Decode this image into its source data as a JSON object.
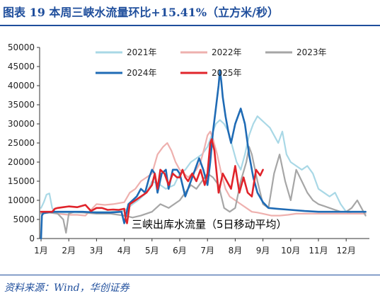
{
  "header": {
    "title": "图表  19    本周三峡水流量环比+15.41%（立方米/秒）"
  },
  "footer": {
    "source": "资料来源：Wind，华创证券"
  },
  "chart_data": {
    "type": "line",
    "title": "图表  19    本周三峡水流量环比+15.41%（立方米/秒）",
    "annotation": "三峡出库水流量（5日移动平均）",
    "ylim": [
      0,
      50000
    ],
    "y_ticks": [
      "0",
      "5000",
      "10000",
      "15000",
      "20000",
      "25000",
      "30000",
      "35000",
      "40000",
      "45000",
      "50000"
    ],
    "x_ticks": [
      "1月",
      "2月",
      "3月",
      "4月",
      "5月",
      "6月",
      "7月",
      "8月",
      "9月",
      "10月",
      "11月",
      "12月"
    ],
    "grid": false,
    "legend_position": "top",
    "series": [
      {
        "name": "2021年",
        "color": "#a9d8e6",
        "x": [
          1,
          1.1,
          1.2,
          1.3,
          1.4,
          1.5,
          1.6,
          2,
          2.5,
          3,
          3.5,
          4,
          4.3,
          4.5,
          4.8,
          5,
          5.3,
          5.5,
          5.8,
          6,
          6.2,
          6.4,
          6.6,
          6.8,
          7,
          7.15,
          7.3,
          7.45,
          7.6,
          7.75,
          7.9,
          8.05,
          8.2,
          8.35,
          8.5,
          8.65,
          8.8,
          8.95,
          9.1,
          9.25,
          9.4,
          9.55,
          9.7,
          9.85,
          10,
          10.2,
          10.4,
          10.6,
          10.8,
          11,
          11.2,
          11.4,
          11.6,
          11.8,
          12,
          12.2,
          12.4,
          12.7
        ],
        "values": [
          8000,
          9500,
          11500,
          11800,
          8000,
          7000,
          6800,
          6800,
          6800,
          7000,
          7000,
          7200,
          9000,
          10000,
          12000,
          15000,
          14000,
          13000,
          14000,
          17000,
          18000,
          20000,
          21000,
          22000,
          24000,
          27000,
          30000,
          31000,
          30000,
          28000,
          24000,
          20000,
          18000,
          22000,
          27000,
          30000,
          32000,
          31000,
          30000,
          29000,
          27000,
          25000,
          28000,
          22000,
          20000,
          19000,
          18000,
          19000,
          17000,
          13000,
          12000,
          11000,
          12000,
          9000,
          7000,
          6500,
          6500,
          6500
        ]
      },
      {
        "name": "2022年",
        "color": "#eeb0ae",
        "x": [
          1,
          1.3,
          1.6,
          2,
          2.3,
          2.6,
          3,
          3.3,
          3.6,
          4,
          4.2,
          4.4,
          4.6,
          4.8,
          5,
          5.2,
          5.4,
          5.55,
          5.7,
          5.85,
          6,
          6.15,
          6.3,
          6.45,
          6.6,
          6.75,
          6.9,
          7,
          7.1,
          7.2,
          7.35,
          7.5,
          7.65,
          7.8,
          8,
          8.2,
          8.4,
          8.6,
          8.8,
          9,
          9.3,
          9.6,
          9.9,
          10.2,
          10.5,
          10.8,
          11.1,
          11.4,
          11.7,
          12,
          12.3,
          12.7
        ],
        "values": [
          6500,
          6800,
          6500,
          6200,
          6200,
          6000,
          9000,
          8800,
          9000,
          9500,
          12000,
          13000,
          15000,
          16000,
          17000,
          22000,
          24000,
          25000,
          23000,
          20000,
          18000,
          17000,
          16000,
          17000,
          18000,
          20000,
          24000,
          27000,
          28000,
          26000,
          22000,
          17000,
          13000,
          11000,
          10000,
          9000,
          8000,
          7000,
          6800,
          6500,
          6000,
          6000,
          6200,
          6500,
          6500,
          6500,
          6500,
          6500,
          6500,
          6500,
          6500,
          6500
        ]
      },
      {
        "name": "2023年",
        "color": "#a6a6a6",
        "x": [
          1,
          1.3,
          1.6,
          1.8,
          1.9,
          2,
          2.2,
          2.5,
          3,
          3.5,
          4,
          4.3,
          4.6,
          5,
          5.3,
          5.6,
          6,
          6.2,
          6.4,
          6.6,
          6.8,
          7,
          7.2,
          7.4,
          7.6,
          7.8,
          8,
          8.2,
          8.4,
          8.5,
          8.6,
          8.8,
          9,
          9.2,
          9.4,
          9.6,
          9.8,
          10,
          10.2,
          10.4,
          10.6,
          10.8,
          11,
          11.2,
          11.4,
          11.6,
          11.8,
          12,
          12.2,
          12.4,
          12.7
        ],
        "values": [
          6500,
          6800,
          6500,
          5000,
          1500,
          6500,
          7000,
          6800,
          6500,
          6500,
          6000,
          5500,
          6000,
          7000,
          9000,
          8000,
          10000,
          12000,
          14000,
          13000,
          15000,
          17000,
          16000,
          14000,
          8000,
          7000,
          8000,
          15000,
          20000,
          24000,
          22000,
          15000,
          9000,
          8000,
          17000,
          22000,
          15000,
          10000,
          18000,
          15000,
          12000,
          10000,
          9000,
          8500,
          8000,
          7500,
          7000,
          7000,
          8000,
          10000,
          6000
        ]
      },
      {
        "name": "2024年",
        "color": "#1f6bb5",
        "x": [
          1,
          1.03,
          1.08,
          1.2,
          1.5,
          2,
          2.5,
          3,
          3.5,
          3.9,
          4,
          4.15,
          4.3,
          4.45,
          4.6,
          4.75,
          4.9,
          5,
          5.1,
          5.2,
          5.35,
          5.5,
          5.6,
          5.75,
          5.9,
          6,
          6.2,
          6.4,
          6.55,
          6.7,
          6.85,
          7,
          7.1,
          7.2,
          7.3,
          7.4,
          7.45,
          7.5,
          7.55,
          7.65,
          7.75,
          7.85,
          8,
          8.2,
          8.35,
          8.5,
          8.65,
          8.8,
          9,
          9.2,
          9.5,
          10,
          10.5,
          11,
          11.5,
          12,
          12.7
        ],
        "values": [
          0,
          6000,
          6600,
          6800,
          7000,
          7000,
          7000,
          6800,
          6800,
          7000,
          4000,
          9000,
          10000,
          11000,
          13000,
          12000,
          16000,
          18000,
          17000,
          12000,
          17000,
          18000,
          13000,
          18000,
          18000,
          17000,
          11000,
          15000,
          18000,
          21000,
          18000,
          14000,
          20000,
          28000,
          34000,
          40000,
          44000,
          41000,
          37000,
          32000,
          28000,
          25000,
          30000,
          34000,
          30000,
          22000,
          16000,
          12000,
          9500,
          8000,
          7800,
          7500,
          7200,
          7000,
          7000,
          7000,
          7000
        ]
      },
      {
        "name": "2025年",
        "color": "#e0242b",
        "x": [
          1,
          1.2,
          1.4,
          1.5,
          1.6,
          1.8,
          2,
          2.3,
          2.6,
          2.8,
          3,
          3.2,
          3.4,
          3.6,
          3.8,
          4,
          4.05,
          4.1,
          4.2,
          4.4,
          4.6,
          4.8,
          5,
          5.1,
          5.2,
          5.3,
          5.45,
          5.6,
          5.75,
          5.9,
          6,
          6.1,
          6.2,
          6.3,
          6.45,
          6.6,
          6.75,
          6.9,
          7,
          7.1,
          7.15,
          7.25,
          7.4,
          7.55,
          7.7,
          7.85,
          8,
          8.15,
          8.3,
          8.45,
          8.6,
          8.75,
          8.9,
          9
        ],
        "values": [
          7000,
          7000,
          7000,
          7800,
          8000,
          8200,
          8400,
          8200,
          8800,
          7200,
          8000,
          8000,
          7500,
          7600,
          7500,
          7800,
          5000,
          4000,
          9000,
          10000,
          11000,
          12000,
          14000,
          17000,
          13000,
          18000,
          17000,
          14000,
          17000,
          16000,
          16000,
          18000,
          16000,
          15000,
          17000,
          15000,
          18000,
          14000,
          17000,
          25000,
          26000,
          23000,
          12000,
          17000,
          15000,
          13000,
          19000,
          12000,
          16000,
          12000,
          11000,
          18000,
          16500,
          18000
        ]
      }
    ]
  }
}
